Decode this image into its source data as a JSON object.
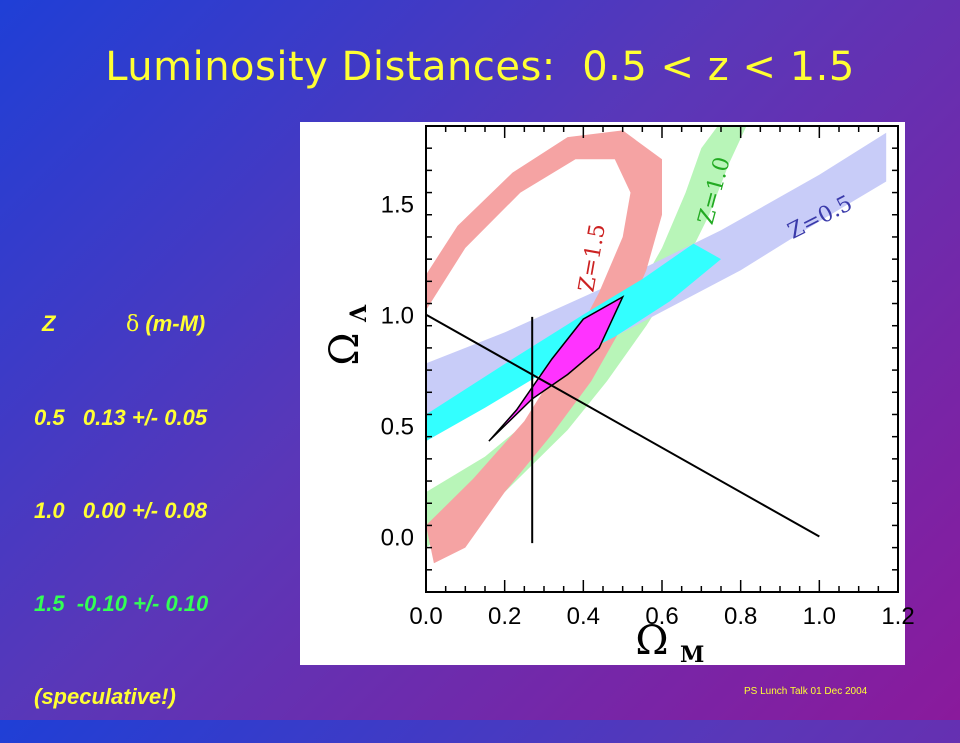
{
  "slide": {
    "title": "Luminosity Distances:  0.5 < z < 1.5",
    "footer": "PS Lunch Talk 01 Dec 2004"
  },
  "table": {
    "header_z": "Z",
    "header_delta_symbol": "δ",
    "header_delta_text": " (m-M)",
    "rows": [
      {
        "text": "0.5   0.13 +/- 0.05",
        "z": 0.5,
        "delta": 0.13,
        "err": 0.05
      },
      {
        "text": "1.0   0.00 +/- 0.08",
        "z": 1.0,
        "delta": 0.0,
        "err": 0.08
      },
      {
        "text": "1.5  -0.10 +/- 0.10",
        "z": 1.5,
        "delta": -0.1,
        "err": 0.1
      }
    ],
    "note": "(speculative!)"
  },
  "chart_data": {
    "type": "area",
    "xlabel": "Ω",
    "xlabel_sub": "M",
    "ylabel": "Ω",
    "ylabel_sub": "Λ",
    "xlim": [
      0.0,
      1.2
    ],
    "ylim": [
      -0.25,
      1.85
    ],
    "xticks": [
      "0.0",
      "0.2",
      "0.4",
      "0.6",
      "0.8",
      "1.0",
      "1.2"
    ],
    "yticks": [
      "0.0",
      "0.5",
      "1.0",
      "1.5"
    ],
    "xtick_values": [
      0.0,
      0.2,
      0.4,
      0.6,
      0.8,
      1.0,
      1.2
    ],
    "ytick_values": [
      0.0,
      0.5,
      1.0,
      1.5
    ],
    "bands": [
      {
        "name": "Z=1.0",
        "color": "#b8f5b8",
        "polygon": [
          [
            0.0,
            0.2
          ],
          [
            0.15,
            0.36
          ],
          [
            0.3,
            0.58
          ],
          [
            0.42,
            0.8
          ],
          [
            0.52,
            1.05
          ],
          [
            0.6,
            1.3
          ],
          [
            0.66,
            1.55
          ],
          [
            0.7,
            1.75
          ],
          [
            0.75,
            1.87
          ],
          [
            0.82,
            1.87
          ],
          [
            0.77,
            1.68
          ],
          [
            0.72,
            1.45
          ],
          [
            0.65,
            1.2
          ],
          [
            0.56,
            0.95
          ],
          [
            0.46,
            0.7
          ],
          [
            0.36,
            0.48
          ],
          [
            0.2,
            0.2
          ],
          [
            0.0,
            -0.05
          ]
        ]
      },
      {
        "name": "Z=0.5",
        "color": "#c8ccf8",
        "polygon": [
          [
            0.0,
            0.55
          ],
          [
            0.2,
            0.68
          ],
          [
            0.5,
            0.92
          ],
          [
            0.8,
            1.2
          ],
          [
            1.0,
            1.42
          ],
          [
            1.17,
            1.6
          ],
          [
            1.17,
            1.82
          ],
          [
            1.0,
            1.63
          ],
          [
            0.75,
            1.38
          ],
          [
            0.45,
            1.12
          ],
          [
            0.2,
            0.92
          ],
          [
            0.0,
            0.78
          ]
        ]
      },
      {
        "name": "Z=1.5",
        "color": "#f5a3a3",
        "polygon": [
          [
            0.0,
            0.05
          ],
          [
            0.12,
            0.26
          ],
          [
            0.25,
            0.52
          ],
          [
            0.36,
            0.83
          ],
          [
            0.44,
            1.1
          ],
          [
            0.5,
            1.35
          ],
          [
            0.52,
            1.55
          ],
          [
            0.48,
            1.7
          ],
          [
            0.38,
            1.7
          ],
          [
            0.24,
            1.55
          ],
          [
            0.1,
            1.3
          ],
          [
            0.0,
            1.02
          ],
          [
            0.0,
            1.18
          ],
          [
            0.08,
            1.4
          ],
          [
            0.22,
            1.64
          ],
          [
            0.36,
            1.8
          ],
          [
            0.5,
            1.83
          ],
          [
            0.6,
            1.7
          ],
          [
            0.6,
            1.45
          ],
          [
            0.56,
            1.2
          ],
          [
            0.5,
            0.95
          ],
          [
            0.42,
            0.7
          ],
          [
            0.32,
            0.46
          ],
          [
            0.2,
            0.2
          ],
          [
            0.1,
            -0.05
          ],
          [
            0.02,
            -0.12
          ]
        ]
      }
    ],
    "overlap_regions": [
      {
        "name": "Z=1.0 ∩ Z=0.5",
        "color": "#33ffff",
        "polygon": [
          [
            0.0,
            0.43
          ],
          [
            0.15,
            0.58
          ],
          [
            0.3,
            0.74
          ],
          [
            0.48,
            0.9
          ],
          [
            0.62,
            1.06
          ],
          [
            0.75,
            1.25
          ],
          [
            0.68,
            1.32
          ],
          [
            0.55,
            1.16
          ],
          [
            0.4,
            1.0
          ],
          [
            0.22,
            0.8
          ],
          [
            0.0,
            0.55
          ]
        ]
      },
      {
        "name": "Z=0.5 ∩ Z=1.0 ∩ Z=1.5",
        "color": "#ff33ff",
        "polygon": [
          [
            0.16,
            0.43
          ],
          [
            0.23,
            0.57
          ],
          [
            0.32,
            0.8
          ],
          [
            0.4,
            0.98
          ],
          [
            0.5,
            1.08
          ],
          [
            0.44,
            0.85
          ],
          [
            0.36,
            0.73
          ],
          [
            0.27,
            0.62
          ]
        ]
      }
    ],
    "lines": [
      {
        "name": "flat universe",
        "points": [
          [
            0.0,
            1.0
          ],
          [
            1.0,
            0.0
          ]
        ]
      },
      {
        "name": "Omega_M constraint",
        "points": [
          [
            0.27,
            -0.03
          ],
          [
            0.27,
            0.99
          ]
        ]
      }
    ],
    "annotations": [
      {
        "text": "Z=1.5",
        "x": 0.44,
        "y": 1.25,
        "rotation": -80,
        "color": "#cc2222"
      },
      {
        "text": "Z=1.0",
        "x": 0.75,
        "y": 1.55,
        "rotation": -75,
        "color": "#22aa22"
      },
      {
        "text": "Z=0.5",
        "x": 1.01,
        "y": 1.41,
        "rotation": -27,
        "color": "#3a3aaa"
      }
    ]
  }
}
